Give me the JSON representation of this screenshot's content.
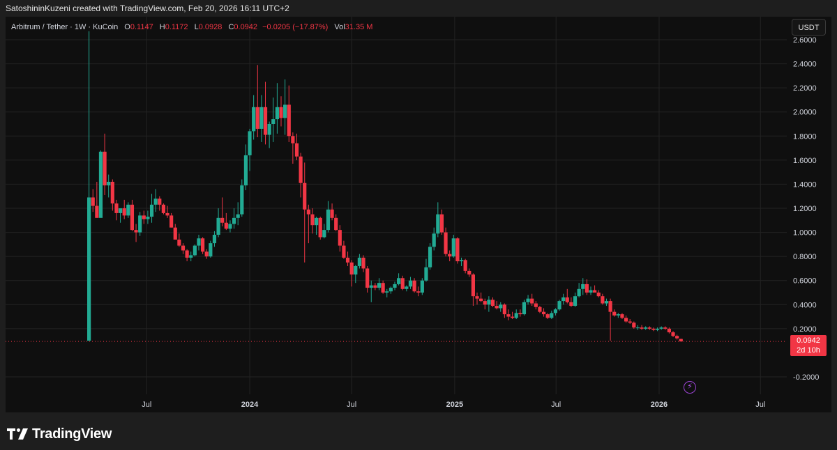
{
  "header": {
    "attribution": "SatoshininKuzeni created with TradingView.com, Feb 20, 2026 16:11 UTC+2"
  },
  "legend": {
    "symbol": "Arbitrum / Tether · 1W · KuCoin",
    "open_label": "O",
    "open": "0.1147",
    "high_label": "H",
    "high": "0.1172",
    "low_label": "L",
    "low": "0.0928",
    "close_label": "C",
    "close": "0.0942",
    "change": "−0.0205 (−17.87%)",
    "vol_label": "Vol",
    "vol": "31.35 M"
  },
  "currency": "USDT",
  "last_price": {
    "value": "0.0942",
    "countdown": "2d 10h"
  },
  "footer": {
    "brand": "TradingView"
  },
  "colors": {
    "up": "#22ab94",
    "down": "#f23645",
    "grid": "#232323",
    "axis_text": "#d1d4dc"
  },
  "chart_data": {
    "type": "candlestick",
    "title": "Arbitrum / Tether · 1W · KuCoin",
    "interval": "1W",
    "ylim": [
      -0.3,
      2.7
    ],
    "y_ticks": [
      "2.6000",
      "2.4000",
      "2.2000",
      "2.0000",
      "1.8000",
      "1.6000",
      "1.4000",
      "1.2000",
      "1.0000",
      "0.8000",
      "0.6000",
      "0.4000",
      "0.2000",
      "-0.2000"
    ],
    "x_ticks": [
      {
        "label": "Jul",
        "date": "2023-07-01"
      },
      {
        "label": "2024",
        "date": "2024-01-01"
      },
      {
        "label": "Jul",
        "date": "2024-07-01"
      },
      {
        "label": "2025",
        "date": "2025-01-01"
      },
      {
        "label": "Jul",
        "date": "2025-07-01"
      },
      {
        "label": "2026",
        "date": "2026-01-01"
      },
      {
        "label": "Jul",
        "date": "2026-07-01"
      }
    ],
    "x_range": [
      "2023-03-13",
      "2026-08-17"
    ],
    "grid": true,
    "last_close": 0.0942,
    "candles": [
      {
        "t": "2023-03-20",
        "o": 0.1,
        "h": 2.67,
        "l": 0.1,
        "c": 1.29
      },
      {
        "t": "2023-03-27",
        "o": 1.29,
        "h": 1.36,
        "l": 1.17,
        "c": 1.22
      },
      {
        "t": "2023-04-03",
        "o": 1.22,
        "h": 1.42,
        "l": 1.13,
        "c": 1.12
      },
      {
        "t": "2023-04-10",
        "o": 1.12,
        "h": 1.68,
        "l": 1.13,
        "c": 1.67
      },
      {
        "t": "2023-04-17",
        "o": 1.67,
        "h": 1.82,
        "l": 1.31,
        "c": 1.39
      },
      {
        "t": "2023-04-24",
        "o": 1.39,
        "h": 1.48,
        "l": 1.29,
        "c": 1.42
      },
      {
        "t": "2023-05-01",
        "o": 1.42,
        "h": 1.44,
        "l": 1.18,
        "c": 1.24
      },
      {
        "t": "2023-05-08",
        "o": 1.24,
        "h": 1.27,
        "l": 1.1,
        "c": 1.16
      },
      {
        "t": "2023-05-15",
        "o": 1.16,
        "h": 1.2,
        "l": 1.08,
        "c": 1.2
      },
      {
        "t": "2023-05-22",
        "o": 1.2,
        "h": 1.27,
        "l": 1.11,
        "c": 1.14
      },
      {
        "t": "2023-05-29",
        "o": 1.14,
        "h": 1.25,
        "l": 1.12,
        "c": 1.23
      },
      {
        "t": "2023-06-05",
        "o": 1.23,
        "h": 1.27,
        "l": 1.01,
        "c": 1.02
      },
      {
        "t": "2023-06-12",
        "o": 1.02,
        "h": 1.07,
        "l": 0.92,
        "c": 1.0
      },
      {
        "t": "2023-06-19",
        "o": 1.0,
        "h": 1.17,
        "l": 0.97,
        "c": 1.14
      },
      {
        "t": "2023-06-26",
        "o": 1.14,
        "h": 1.18,
        "l": 1.07,
        "c": 1.11
      },
      {
        "t": "2023-07-03",
        "o": 1.11,
        "h": 1.18,
        "l": 1.07,
        "c": 1.13
      },
      {
        "t": "2023-07-10",
        "o": 1.13,
        "h": 1.32,
        "l": 1.08,
        "c": 1.23
      },
      {
        "t": "2023-07-17",
        "o": 1.23,
        "h": 1.36,
        "l": 1.17,
        "c": 1.28
      },
      {
        "t": "2023-07-24",
        "o": 1.28,
        "h": 1.3,
        "l": 1.18,
        "c": 1.23
      },
      {
        "t": "2023-07-31",
        "o": 1.23,
        "h": 1.24,
        "l": 1.15,
        "c": 1.16
      },
      {
        "t": "2023-08-07",
        "o": 1.16,
        "h": 1.22,
        "l": 1.12,
        "c": 1.14
      },
      {
        "t": "2023-08-14",
        "o": 1.14,
        "h": 1.16,
        "l": 1.04,
        "c": 1.04
      },
      {
        "t": "2023-08-21",
        "o": 1.04,
        "h": 1.07,
        "l": 0.94,
        "c": 0.94
      },
      {
        "t": "2023-08-28",
        "o": 0.94,
        "h": 0.99,
        "l": 0.88,
        "c": 0.89
      },
      {
        "t": "2023-09-04",
        "o": 0.89,
        "h": 0.91,
        "l": 0.82,
        "c": 0.85
      },
      {
        "t": "2023-09-11",
        "o": 0.85,
        "h": 0.86,
        "l": 0.76,
        "c": 0.79
      },
      {
        "t": "2023-09-18",
        "o": 0.79,
        "h": 0.84,
        "l": 0.76,
        "c": 0.81
      },
      {
        "t": "2023-09-25",
        "o": 0.81,
        "h": 0.9,
        "l": 0.8,
        "c": 0.89
      },
      {
        "t": "2023-10-02",
        "o": 0.89,
        "h": 0.98,
        "l": 0.85,
        "c": 0.95
      },
      {
        "t": "2023-10-09",
        "o": 0.95,
        "h": 0.96,
        "l": 0.82,
        "c": 0.84
      },
      {
        "t": "2023-10-16",
        "o": 0.84,
        "h": 0.86,
        "l": 0.78,
        "c": 0.8
      },
      {
        "t": "2023-10-23",
        "o": 0.8,
        "h": 0.93,
        "l": 0.79,
        "c": 0.91
      },
      {
        "t": "2023-10-30",
        "o": 0.91,
        "h": 1.01,
        "l": 0.88,
        "c": 0.98
      },
      {
        "t": "2023-11-06",
        "o": 0.98,
        "h": 1.2,
        "l": 0.96,
        "c": 1.12
      },
      {
        "t": "2023-11-13",
        "o": 1.12,
        "h": 1.29,
        "l": 1.05,
        "c": 1.08
      },
      {
        "t": "2023-11-20",
        "o": 1.08,
        "h": 1.16,
        "l": 1.02,
        "c": 1.03
      },
      {
        "t": "2023-11-27",
        "o": 1.03,
        "h": 1.1,
        "l": 1.0,
        "c": 1.07
      },
      {
        "t": "2023-12-04",
        "o": 1.07,
        "h": 1.2,
        "l": 1.03,
        "c": 1.12
      },
      {
        "t": "2023-12-11",
        "o": 1.12,
        "h": 1.25,
        "l": 1.06,
        "c": 1.15
      },
      {
        "t": "2023-12-18",
        "o": 1.15,
        "h": 1.44,
        "l": 1.13,
        "c": 1.39
      },
      {
        "t": "2023-12-25",
        "o": 1.39,
        "h": 1.73,
        "l": 1.35,
        "c": 1.64
      },
      {
        "t": "2024-01-01",
        "o": 1.64,
        "h": 1.86,
        "l": 1.51,
        "c": 1.84
      },
      {
        "t": "2024-01-08",
        "o": 1.84,
        "h": 2.14,
        "l": 1.77,
        "c": 2.04
      },
      {
        "t": "2024-01-15",
        "o": 2.04,
        "h": 2.39,
        "l": 1.79,
        "c": 1.86
      },
      {
        "t": "2024-01-22",
        "o": 1.86,
        "h": 2.14,
        "l": 1.75,
        "c": 2.04
      },
      {
        "t": "2024-01-29",
        "o": 2.04,
        "h": 2.25,
        "l": 1.73,
        "c": 1.81
      },
      {
        "t": "2024-02-05",
        "o": 1.81,
        "h": 1.92,
        "l": 1.7,
        "c": 1.9
      },
      {
        "t": "2024-02-12",
        "o": 1.9,
        "h": 2.12,
        "l": 1.75,
        "c": 1.94
      },
      {
        "t": "2024-02-19",
        "o": 1.94,
        "h": 2.24,
        "l": 1.82,
        "c": 2.04
      },
      {
        "t": "2024-02-26",
        "o": 2.04,
        "h": 2.13,
        "l": 1.88,
        "c": 1.95
      },
      {
        "t": "2024-03-04",
        "o": 1.95,
        "h": 2.27,
        "l": 1.81,
        "c": 2.06
      },
      {
        "t": "2024-03-11",
        "o": 2.06,
        "h": 2.22,
        "l": 1.75,
        "c": 1.8
      },
      {
        "t": "2024-03-18",
        "o": 1.8,
        "h": 1.83,
        "l": 1.57,
        "c": 1.74
      },
      {
        "t": "2024-03-25",
        "o": 1.74,
        "h": 1.82,
        "l": 1.6,
        "c": 1.63
      },
      {
        "t": "2024-04-01",
        "o": 1.63,
        "h": 1.66,
        "l": 1.29,
        "c": 1.41
      },
      {
        "t": "2024-04-08",
        "o": 1.41,
        "h": 1.58,
        "l": 0.75,
        "c": 1.19
      },
      {
        "t": "2024-04-15",
        "o": 1.19,
        "h": 1.23,
        "l": 0.91,
        "c": 1.15
      },
      {
        "t": "2024-04-22",
        "o": 1.15,
        "h": 1.2,
        "l": 0.99,
        "c": 1.06
      },
      {
        "t": "2024-04-29",
        "o": 1.06,
        "h": 1.13,
        "l": 0.98,
        "c": 1.12
      },
      {
        "t": "2024-05-06",
        "o": 1.12,
        "h": 1.13,
        "l": 0.94,
        "c": 0.96
      },
      {
        "t": "2024-05-13",
        "o": 0.96,
        "h": 1.07,
        "l": 0.95,
        "c": 1.02
      },
      {
        "t": "2024-05-20",
        "o": 1.02,
        "h": 1.26,
        "l": 1.0,
        "c": 1.19
      },
      {
        "t": "2024-05-27",
        "o": 1.19,
        "h": 1.24,
        "l": 1.1,
        "c": 1.12
      },
      {
        "t": "2024-06-03",
        "o": 1.12,
        "h": 1.15,
        "l": 1.01,
        "c": 1.02
      },
      {
        "t": "2024-06-10",
        "o": 1.02,
        "h": 1.06,
        "l": 0.84,
        "c": 0.89
      },
      {
        "t": "2024-06-17",
        "o": 0.89,
        "h": 0.93,
        "l": 0.78,
        "c": 0.79
      },
      {
        "t": "2024-06-24",
        "o": 0.79,
        "h": 0.84,
        "l": 0.72,
        "c": 0.75
      },
      {
        "t": "2024-07-01",
        "o": 0.75,
        "h": 0.77,
        "l": 0.55,
        "c": 0.65
      },
      {
        "t": "2024-07-08",
        "o": 0.65,
        "h": 0.73,
        "l": 0.58,
        "c": 0.72
      },
      {
        "t": "2024-07-15",
        "o": 0.72,
        "h": 0.82,
        "l": 0.7,
        "c": 0.79
      },
      {
        "t": "2024-07-22",
        "o": 0.79,
        "h": 0.81,
        "l": 0.67,
        "c": 0.7
      },
      {
        "t": "2024-07-29",
        "o": 0.7,
        "h": 0.72,
        "l": 0.5,
        "c": 0.54
      },
      {
        "t": "2024-08-05",
        "o": 0.54,
        "h": 0.6,
        "l": 0.42,
        "c": 0.56
      },
      {
        "t": "2024-08-12",
        "o": 0.56,
        "h": 0.58,
        "l": 0.52,
        "c": 0.54
      },
      {
        "t": "2024-08-19",
        "o": 0.54,
        "h": 0.62,
        "l": 0.52,
        "c": 0.58
      },
      {
        "t": "2024-08-26",
        "o": 0.58,
        "h": 0.6,
        "l": 0.49,
        "c": 0.5
      },
      {
        "t": "2024-09-02",
        "o": 0.5,
        "h": 0.53,
        "l": 0.46,
        "c": 0.51
      },
      {
        "t": "2024-09-09",
        "o": 0.51,
        "h": 0.55,
        "l": 0.49,
        "c": 0.54
      },
      {
        "t": "2024-09-16",
        "o": 0.54,
        "h": 0.59,
        "l": 0.52,
        "c": 0.57
      },
      {
        "t": "2024-09-23",
        "o": 0.57,
        "h": 0.66,
        "l": 0.56,
        "c": 0.62
      },
      {
        "t": "2024-09-30",
        "o": 0.62,
        "h": 0.64,
        "l": 0.52,
        "c": 0.53
      },
      {
        "t": "2024-10-07",
        "o": 0.53,
        "h": 0.56,
        "l": 0.51,
        "c": 0.55
      },
      {
        "t": "2024-10-14",
        "o": 0.55,
        "h": 0.63,
        "l": 0.53,
        "c": 0.6
      },
      {
        "t": "2024-10-21",
        "o": 0.6,
        "h": 0.62,
        "l": 0.5,
        "c": 0.51
      },
      {
        "t": "2024-10-28",
        "o": 0.51,
        "h": 0.55,
        "l": 0.47,
        "c": 0.5
      },
      {
        "t": "2024-11-04",
        "o": 0.5,
        "h": 0.62,
        "l": 0.48,
        "c": 0.6
      },
      {
        "t": "2024-11-11",
        "o": 0.6,
        "h": 0.78,
        "l": 0.59,
        "c": 0.71
      },
      {
        "t": "2024-11-18",
        "o": 0.71,
        "h": 0.91,
        "l": 0.69,
        "c": 0.88
      },
      {
        "t": "2024-11-25",
        "o": 0.88,
        "h": 1.04,
        "l": 0.85,
        "c": 0.99
      },
      {
        "t": "2024-12-02",
        "o": 0.99,
        "h": 1.25,
        "l": 0.96,
        "c": 1.15
      },
      {
        "t": "2024-12-09",
        "o": 1.15,
        "h": 1.19,
        "l": 0.98,
        "c": 1.0
      },
      {
        "t": "2024-12-16",
        "o": 1.0,
        "h": 1.04,
        "l": 0.8,
        "c": 0.82
      },
      {
        "t": "2024-12-23",
        "o": 0.82,
        "h": 0.85,
        "l": 0.76,
        "c": 0.8
      },
      {
        "t": "2024-12-30",
        "o": 0.8,
        "h": 0.98,
        "l": 0.79,
        "c": 0.95
      },
      {
        "t": "2025-01-06",
        "o": 0.95,
        "h": 0.96,
        "l": 0.74,
        "c": 0.76
      },
      {
        "t": "2025-01-13",
        "o": 0.76,
        "h": 0.79,
        "l": 0.72,
        "c": 0.77
      },
      {
        "t": "2025-01-20",
        "o": 0.77,
        "h": 0.78,
        "l": 0.66,
        "c": 0.68
      },
      {
        "t": "2025-01-27",
        "o": 0.68,
        "h": 0.7,
        "l": 0.63,
        "c": 0.65
      },
      {
        "t": "2025-02-03",
        "o": 0.65,
        "h": 0.66,
        "l": 0.39,
        "c": 0.47
      },
      {
        "t": "2025-02-10",
        "o": 0.47,
        "h": 0.5,
        "l": 0.4,
        "c": 0.45
      },
      {
        "t": "2025-02-17",
        "o": 0.45,
        "h": 0.5,
        "l": 0.42,
        "c": 0.43
      },
      {
        "t": "2025-02-24",
        "o": 0.43,
        "h": 0.45,
        "l": 0.36,
        "c": 0.4
      },
      {
        "t": "2025-03-03",
        "o": 0.4,
        "h": 0.47,
        "l": 0.34,
        "c": 0.44
      },
      {
        "t": "2025-03-10",
        "o": 0.44,
        "h": 0.46,
        "l": 0.38,
        "c": 0.39
      },
      {
        "t": "2025-03-17",
        "o": 0.39,
        "h": 0.43,
        "l": 0.36,
        "c": 0.37
      },
      {
        "t": "2025-03-24",
        "o": 0.37,
        "h": 0.42,
        "l": 0.34,
        "c": 0.4
      },
      {
        "t": "2025-03-31",
        "o": 0.4,
        "h": 0.41,
        "l": 0.29,
        "c": 0.32
      },
      {
        "t": "2025-04-07",
        "o": 0.32,
        "h": 0.36,
        "l": 0.27,
        "c": 0.3
      },
      {
        "t": "2025-04-14",
        "o": 0.3,
        "h": 0.34,
        "l": 0.28,
        "c": 0.29
      },
      {
        "t": "2025-04-21",
        "o": 0.29,
        "h": 0.36,
        "l": 0.28,
        "c": 0.33
      },
      {
        "t": "2025-04-28",
        "o": 0.33,
        "h": 0.36,
        "l": 0.3,
        "c": 0.32
      },
      {
        "t": "2025-05-05",
        "o": 0.32,
        "h": 0.44,
        "l": 0.31,
        "c": 0.42
      },
      {
        "t": "2025-05-12",
        "o": 0.42,
        "h": 0.48,
        "l": 0.4,
        "c": 0.45
      },
      {
        "t": "2025-05-19",
        "o": 0.45,
        "h": 0.49,
        "l": 0.39,
        "c": 0.41
      },
      {
        "t": "2025-05-26",
        "o": 0.41,
        "h": 0.43,
        "l": 0.36,
        "c": 0.38
      },
      {
        "t": "2025-06-02",
        "o": 0.38,
        "h": 0.39,
        "l": 0.33,
        "c": 0.34
      },
      {
        "t": "2025-06-09",
        "o": 0.34,
        "h": 0.37,
        "l": 0.3,
        "c": 0.32
      },
      {
        "t": "2025-06-16",
        "o": 0.32,
        "h": 0.33,
        "l": 0.28,
        "c": 0.29
      },
      {
        "t": "2025-06-23",
        "o": 0.29,
        "h": 0.35,
        "l": 0.28,
        "c": 0.33
      },
      {
        "t": "2025-06-30",
        "o": 0.33,
        "h": 0.37,
        "l": 0.31,
        "c": 0.36
      },
      {
        "t": "2025-07-07",
        "o": 0.36,
        "h": 0.44,
        "l": 0.35,
        "c": 0.43
      },
      {
        "t": "2025-07-14",
        "o": 0.43,
        "h": 0.49,
        "l": 0.4,
        "c": 0.46
      },
      {
        "t": "2025-07-21",
        "o": 0.46,
        "h": 0.53,
        "l": 0.41,
        "c": 0.42
      },
      {
        "t": "2025-07-28",
        "o": 0.42,
        "h": 0.46,
        "l": 0.38,
        "c": 0.39
      },
      {
        "t": "2025-08-04",
        "o": 0.39,
        "h": 0.5,
        "l": 0.38,
        "c": 0.47
      },
      {
        "t": "2025-08-11",
        "o": 0.47,
        "h": 0.58,
        "l": 0.46,
        "c": 0.53
      },
      {
        "t": "2025-08-18",
        "o": 0.53,
        "h": 0.62,
        "l": 0.48,
        "c": 0.57
      },
      {
        "t": "2025-08-25",
        "o": 0.57,
        "h": 0.61,
        "l": 0.48,
        "c": 0.5
      },
      {
        "t": "2025-09-01",
        "o": 0.5,
        "h": 0.55,
        "l": 0.48,
        "c": 0.52
      },
      {
        "t": "2025-09-08",
        "o": 0.52,
        "h": 0.56,
        "l": 0.5,
        "c": 0.5
      },
      {
        "t": "2025-09-15",
        "o": 0.5,
        "h": 0.52,
        "l": 0.46,
        "c": 0.47
      },
      {
        "t": "2025-09-22",
        "o": 0.47,
        "h": 0.49,
        "l": 0.4,
        "c": 0.41
      },
      {
        "t": "2025-09-29",
        "o": 0.41,
        "h": 0.45,
        "l": 0.39,
        "c": 0.43
      },
      {
        "t": "2025-10-06",
        "o": 0.43,
        "h": 0.45,
        "l": 0.1,
        "c": 0.34
      },
      {
        "t": "2025-10-13",
        "o": 0.34,
        "h": 0.36,
        "l": 0.3,
        "c": 0.31
      },
      {
        "t": "2025-10-20",
        "o": 0.31,
        "h": 0.33,
        "l": 0.29,
        "c": 0.32
      },
      {
        "t": "2025-10-27",
        "o": 0.32,
        "h": 0.33,
        "l": 0.28,
        "c": 0.29
      },
      {
        "t": "2025-11-03",
        "o": 0.29,
        "h": 0.31,
        "l": 0.25,
        "c": 0.26
      },
      {
        "t": "2025-11-10",
        "o": 0.26,
        "h": 0.28,
        "l": 0.24,
        "c": 0.25
      },
      {
        "t": "2025-11-17",
        "o": 0.25,
        "h": 0.26,
        "l": 0.2,
        "c": 0.21
      },
      {
        "t": "2025-11-24",
        "o": 0.21,
        "h": 0.23,
        "l": 0.19,
        "c": 0.21
      },
      {
        "t": "2025-12-01",
        "o": 0.21,
        "h": 0.23,
        "l": 0.19,
        "c": 0.2
      },
      {
        "t": "2025-12-08",
        "o": 0.2,
        "h": 0.22,
        "l": 0.19,
        "c": 0.21
      },
      {
        "t": "2025-12-15",
        "o": 0.21,
        "h": 0.22,
        "l": 0.19,
        "c": 0.2
      },
      {
        "t": "2025-12-22",
        "o": 0.2,
        "h": 0.21,
        "l": 0.18,
        "c": 0.19
      },
      {
        "t": "2025-12-29",
        "o": 0.19,
        "h": 0.21,
        "l": 0.18,
        "c": 0.2
      },
      {
        "t": "2026-01-05",
        "o": 0.2,
        "h": 0.22,
        "l": 0.19,
        "c": 0.21
      },
      {
        "t": "2026-01-12",
        "o": 0.21,
        "h": 0.22,
        "l": 0.19,
        "c": 0.2
      },
      {
        "t": "2026-01-19",
        "o": 0.2,
        "h": 0.21,
        "l": 0.16,
        "c": 0.17
      },
      {
        "t": "2026-01-26",
        "o": 0.17,
        "h": 0.18,
        "l": 0.13,
        "c": 0.14
      },
      {
        "t": "2026-02-02",
        "o": 0.14,
        "h": 0.15,
        "l": 0.11,
        "c": 0.12
      },
      {
        "t": "2026-02-09",
        "o": 0.1147,
        "h": 0.1172,
        "l": 0.0928,
        "c": 0.0942
      }
    ]
  }
}
